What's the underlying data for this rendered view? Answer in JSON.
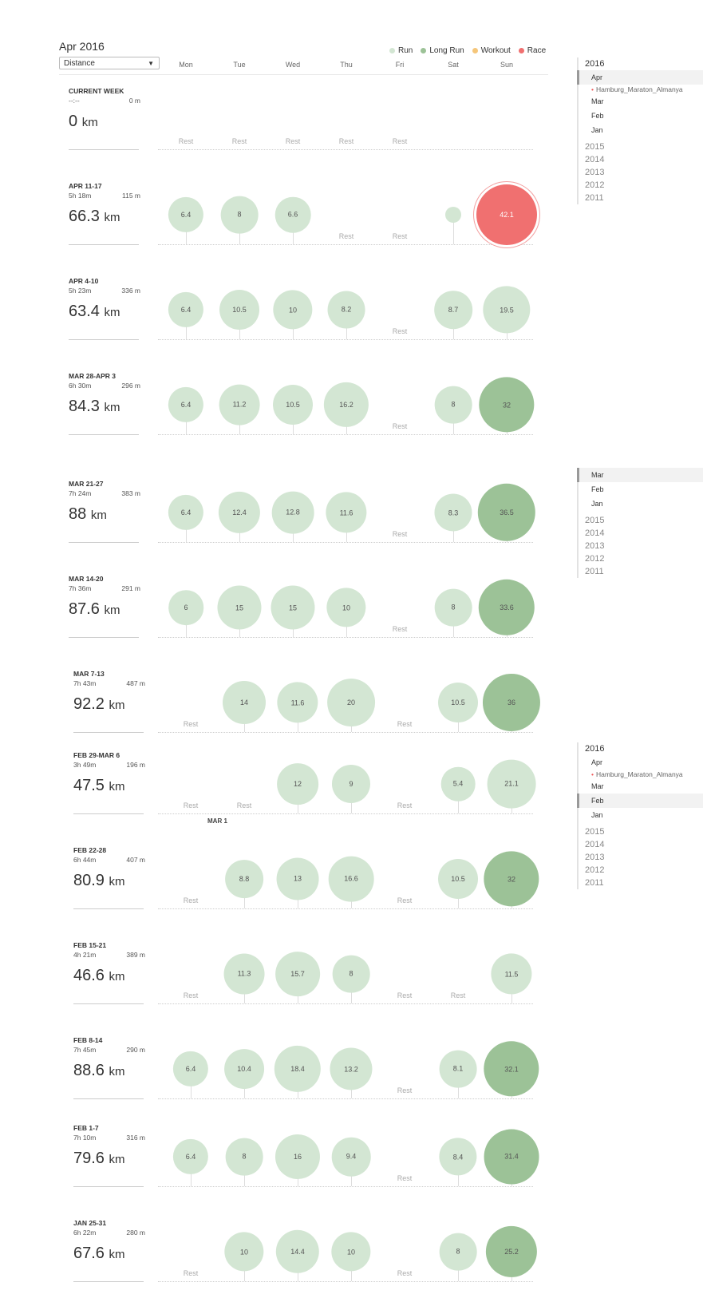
{
  "header": {
    "title": "Apr 2016",
    "metric_select": "Distance"
  },
  "legend": [
    {
      "label": "Run",
      "color": "#d3e6d3"
    },
    {
      "label": "Long Run",
      "color": "#9cc297"
    },
    {
      "label": "Workout",
      "color": "#f5c67a"
    },
    {
      "label": "Race",
      "color": "#f07070"
    }
  ],
  "days": [
    "Mon",
    "Tue",
    "Wed",
    "Thu",
    "Fri",
    "Sat",
    "Sun"
  ],
  "rest_label": "Rest",
  "unit": "km",
  "mar1_label": "MAR 1",
  "weeks": [
    {
      "label": "CURRENT WEEK",
      "time": "--:--",
      "elev": "0 m",
      "dist": "0",
      "days": [
        "rest",
        "rest",
        "rest",
        "rest",
        "rest",
        null,
        null
      ]
    },
    {
      "label": "APR 11-17",
      "time": "5h 18m",
      "elev": "115 m",
      "dist": "66.3",
      "days": [
        [
          "run",
          "6.4"
        ],
        [
          "run",
          "8"
        ],
        [
          "run",
          "6.6"
        ],
        "rest",
        "rest",
        [
          "run",
          ""
        ],
        [
          "race",
          "42.1"
        ]
      ]
    },
    {
      "label": "APR 4-10",
      "time": "5h 23m",
      "elev": "336 m",
      "dist": "63.4",
      "days": [
        [
          "run",
          "6.4"
        ],
        [
          "run",
          "10.5"
        ],
        [
          "run",
          "10"
        ],
        [
          "run",
          "8.2"
        ],
        "rest",
        [
          "run",
          "8.7"
        ],
        [
          "run",
          "19.5"
        ]
      ]
    },
    {
      "label": "MAR 28-APR 3",
      "time": "6h 30m",
      "elev": "296 m",
      "dist": "84.3",
      "days": [
        [
          "run",
          "6.4"
        ],
        [
          "run",
          "11.2"
        ],
        [
          "run",
          "10.5"
        ],
        [
          "run",
          "16.2"
        ],
        "rest",
        [
          "run",
          "8"
        ],
        [
          "long",
          "32"
        ]
      ]
    },
    {
      "label": "MAR 21-27",
      "time": "7h 24m",
      "elev": "383 m",
      "dist": "88",
      "days": [
        [
          "run",
          "6.4"
        ],
        [
          "run",
          "12.4"
        ],
        [
          "run",
          "12.8"
        ],
        [
          "run",
          "11.6"
        ],
        "rest",
        [
          "run",
          "8.3"
        ],
        [
          "long",
          "36.5"
        ]
      ]
    },
    {
      "label": "MAR 14-20",
      "time": "7h 36m",
      "elev": "291 m",
      "dist": "87.6",
      "days": [
        [
          "run",
          "6"
        ],
        [
          "run",
          "15"
        ],
        [
          "run",
          "15"
        ],
        [
          "run",
          "10"
        ],
        "rest",
        [
          "run",
          "8"
        ],
        [
          "long",
          "33.6"
        ]
      ]
    },
    {
      "label": "MAR 7-13",
      "time": "7h 43m",
      "elev": "487 m",
      "dist": "92.2",
      "days": [
        "rest",
        [
          "run",
          "14"
        ],
        [
          "run",
          "11.6"
        ],
        [
          "run",
          "20"
        ],
        "rest",
        [
          "run",
          "10.5"
        ],
        [
          "long",
          "36"
        ]
      ]
    },
    {
      "label": "FEB 29-MAR 6",
      "time": "3h 49m",
      "elev": "196 m",
      "dist": "47.5",
      "days": [
        "rest",
        "rest",
        [
          "run",
          "12"
        ],
        [
          "run",
          "9"
        ],
        "rest",
        [
          "run",
          "5.4"
        ],
        [
          "run",
          "21.1"
        ]
      ]
    },
    {
      "label": "FEB 22-28",
      "time": "6h 44m",
      "elev": "407 m",
      "dist": "80.9",
      "days": [
        "rest",
        [
          "run",
          "8.8"
        ],
        [
          "run",
          "13"
        ],
        [
          "run",
          "16.6"
        ],
        "rest",
        [
          "run",
          "10.5"
        ],
        [
          "long",
          "32"
        ]
      ]
    },
    {
      "label": "FEB 15-21",
      "time": "4h 21m",
      "elev": "389 m",
      "dist": "46.6",
      "days": [
        "rest",
        [
          "run",
          "11.3"
        ],
        [
          "run",
          "15.7"
        ],
        [
          "run",
          "8"
        ],
        "rest",
        "rest",
        [
          "run",
          "11.5"
        ]
      ]
    },
    {
      "label": "FEB 8-14",
      "time": "7h 45m",
      "elev": "290 m",
      "dist": "88.6",
      "days": [
        [
          "run",
          "6.4"
        ],
        [
          "run",
          "10.4"
        ],
        [
          "run",
          "18.4"
        ],
        [
          "run",
          "13.2"
        ],
        "rest",
        [
          "run",
          "8.1"
        ],
        [
          "long",
          "32.1"
        ]
      ]
    },
    {
      "label": "FEB 1-7",
      "time": "7h 10m",
      "elev": "316 m",
      "dist": "79.6",
      "days": [
        [
          "run",
          "6.4"
        ],
        [
          "run",
          "8"
        ],
        [
          "run",
          "16"
        ],
        [
          "run",
          "9.4"
        ],
        "rest",
        [
          "run",
          "8.4"
        ],
        [
          "long",
          "31.4"
        ]
      ]
    },
    {
      "label": "JAN 25-31",
      "time": "6h 22m",
      "elev": "280 m",
      "dist": "67.6",
      "days": [
        "rest",
        [
          "run",
          "10"
        ],
        [
          "run",
          "14.4"
        ],
        [
          "run",
          "10"
        ],
        "rest",
        [
          "run",
          "8"
        ],
        [
          "long",
          "25.2"
        ]
      ]
    }
  ],
  "sidebars": [
    {
      "years_top": "2016",
      "items": [
        {
          "t": "mo",
          "label": "Apr",
          "sel": true
        },
        {
          "t": "race",
          "label": "Hamburg_Maraton_Almanya"
        },
        {
          "t": "mo",
          "label": "Mar"
        },
        {
          "t": "mo",
          "label": "Feb"
        },
        {
          "t": "mo",
          "label": "Jan"
        }
      ],
      "years": [
        "2015",
        "2014",
        "2013",
        "2012",
        "2011"
      ]
    },
    {
      "years_top": "",
      "items": [
        {
          "t": "mo",
          "label": "Mar",
          "sel": true
        },
        {
          "t": "mo",
          "label": "Feb"
        },
        {
          "t": "mo",
          "label": "Jan"
        }
      ],
      "years": [
        "2015",
        "2014",
        "2013",
        "2012",
        "2011"
      ]
    },
    {
      "years_top": "2016",
      "items": [
        {
          "t": "mo",
          "label": "Apr"
        },
        {
          "t": "race",
          "label": "Hamburg_Maraton_Almanya"
        },
        {
          "t": "mo",
          "label": "Mar"
        },
        {
          "t": "mo",
          "label": "Feb",
          "sel": true
        },
        {
          "t": "mo",
          "label": "Jan"
        }
      ],
      "years": [
        "2015",
        "2014",
        "2013",
        "2012",
        "2011"
      ]
    }
  ]
}
